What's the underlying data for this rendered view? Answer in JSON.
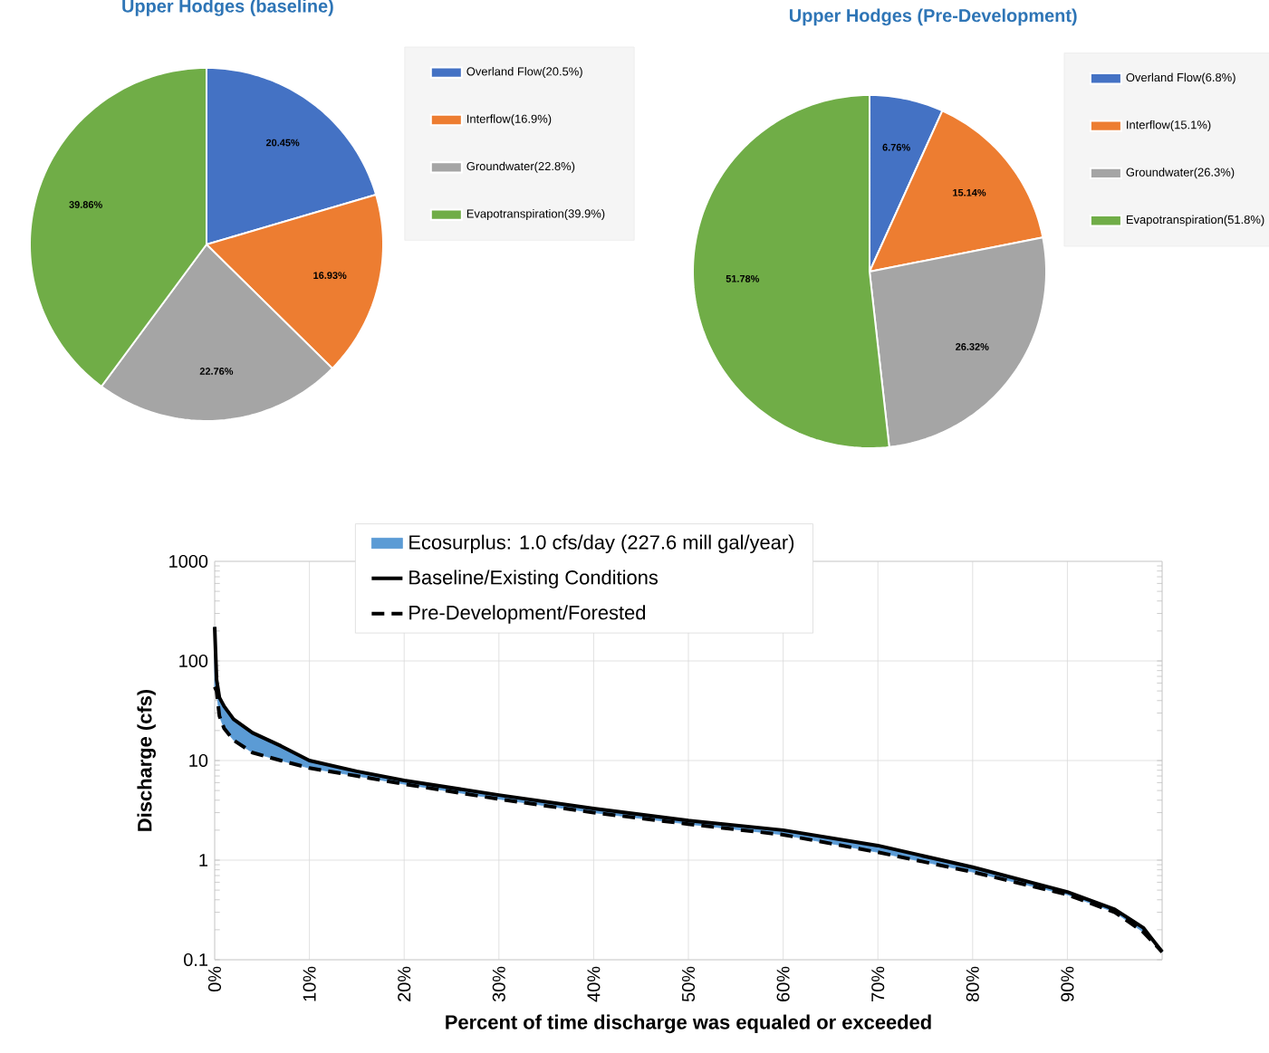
{
  "chart_data": [
    {
      "type": "pie",
      "title": "Upper Hodges (baseline)",
      "categories": [
        "Overland Flow(20.5%)",
        "Interflow(16.9%)",
        "Groundwater(22.8%)",
        "Evapotranspiration(39.9%)"
      ],
      "values": [
        20.45,
        16.93,
        22.76,
        39.86
      ],
      "value_labels": [
        "20.45%",
        "16.93%",
        "22.76%",
        "39.86%"
      ],
      "colors": [
        "#4472c4",
        "#ed7d31",
        "#a5a5a5",
        "#70ad47"
      ],
      "legend": "right"
    },
    {
      "type": "pie",
      "title": "Upper Hodges (Pre-Development)",
      "categories": [
        "Overland Flow(6.8%)",
        "Interflow(15.1%)",
        "Groundwater(26.3%)",
        "Evapotranspiration(51.8%)"
      ],
      "values": [
        6.76,
        15.14,
        26.32,
        51.78
      ],
      "value_labels": [
        "6.76%",
        "15.14%",
        "26.32%",
        "51.78%"
      ],
      "colors": [
        "#4472c4",
        "#ed7d31",
        "#a5a5a5",
        "#70ad47"
      ],
      "legend": "right"
    },
    {
      "type": "line",
      "xlabel": "Percent of time discharge was equaled or exceeded",
      "ylabel": "Discharge (cfs)",
      "x": [
        0,
        0.2,
        0.5,
        1,
        2,
        4,
        7,
        10,
        15,
        20,
        30,
        40,
        50,
        60,
        70,
        80,
        90,
        95,
        98,
        100
      ],
      "series": [
        {
          "name": "Ecosurplus: 1.0 cfs/day (227.6 mill gal/year)",
          "type": "area",
          "color": "#5b9bd5",
          "values": [
            null,
            null,
            null,
            null,
            null,
            null,
            null,
            null,
            null,
            null,
            null,
            null,
            null,
            null,
            null,
            null,
            null,
            null,
            null,
            null
          ],
          "upper": [
            220,
            65,
            43,
            35,
            26,
            19,
            14,
            10,
            7.8,
            6.3,
            4.5,
            3.3,
            2.5,
            2.0,
            1.4,
            0.85,
            0.48,
            0.32,
            0.21,
            0.12
          ],
          "lower": [
            55,
            50,
            28,
            21,
            16,
            12,
            10,
            8.4,
            7.0,
            5.8,
            4.1,
            3.0,
            2.3,
            1.8,
            1.2,
            0.76,
            0.45,
            0.3,
            0.19,
            0.12
          ]
        },
        {
          "name": "Baseline/Existing Conditions",
          "color": "#000000",
          "line_style": "solid",
          "values": [
            220,
            65,
            43,
            35,
            26,
            19,
            14,
            10,
            7.8,
            6.3,
            4.5,
            3.3,
            2.5,
            2.0,
            1.4,
            0.85,
            0.48,
            0.32,
            0.21,
            0.12
          ]
        },
        {
          "name": "Pre-Development/Forested",
          "color": "#000000",
          "line_style": "dashed",
          "values": [
            55,
            50,
            28,
            21,
            16,
            12,
            10,
            8.4,
            7.0,
            5.8,
            4.1,
            3.0,
            2.3,
            1.8,
            1.2,
            0.76,
            0.45,
            0.3,
            0.19,
            0.12
          ]
        }
      ],
      "xlim": [
        0,
        100
      ],
      "xticks": [
        {
          "value": 0,
          "label": "0%"
        },
        {
          "value": 10,
          "label": "10%"
        },
        {
          "value": 20,
          "label": "20%"
        },
        {
          "value": 30,
          "label": "30%"
        },
        {
          "value": 40,
          "label": "40%"
        },
        {
          "value": 50,
          "label": "50%"
        },
        {
          "value": 60,
          "label": "60%"
        },
        {
          "value": 70,
          "label": "70%"
        },
        {
          "value": 80,
          "label": "80%"
        },
        {
          "value": 90,
          "label": "90%"
        },
        {
          "value": 100,
          "label": null
        }
      ],
      "ylim": [
        0.1,
        1000
      ],
      "yticks": [
        0.1,
        1,
        10,
        100,
        1000
      ],
      "log": "y",
      "grid": true,
      "legend": "top",
      "marker": "none"
    }
  ]
}
